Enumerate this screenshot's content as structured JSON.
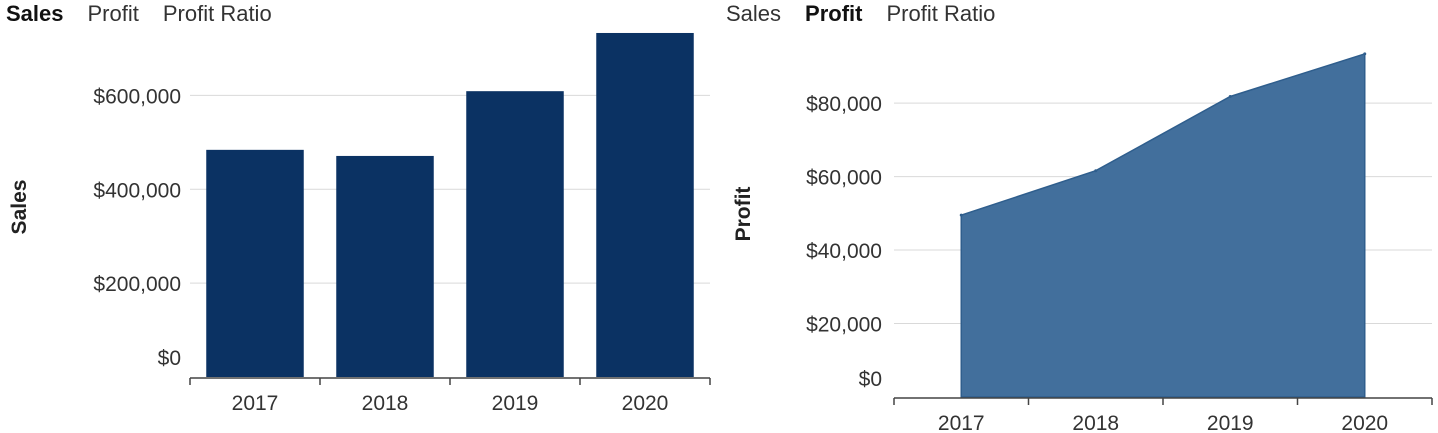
{
  "colors": {
    "bar_fill": "#0b3263",
    "area_fill": "#426f9c",
    "area_stroke": "#2f5e8d",
    "gridline": "#d9d9d9",
    "axis": "#444444"
  },
  "left_panel": {
    "tabs": [
      {
        "label": "Sales",
        "active": true
      },
      {
        "label": "Profit",
        "active": false
      },
      {
        "label": "Profit Ratio",
        "active": false
      }
    ]
  },
  "right_panel": {
    "tabs": [
      {
        "label": "Sales",
        "active": false
      },
      {
        "label": "Profit",
        "active": true
      },
      {
        "label": "Profit Ratio",
        "active": false
      }
    ]
  },
  "chart_data": [
    {
      "type": "bar",
      "categories": [
        "2017",
        "2018",
        "2019",
        "2020"
      ],
      "series": [
        {
          "values": [
            484000,
            471000,
            609000,
            733000
          ]
        }
      ],
      "title": "",
      "xlabel": "",
      "ylabel": "Sales",
      "ylim": [
        0,
        750000
      ],
      "yticks": [
        0,
        200000,
        400000,
        600000
      ],
      "ytick_labels": [
        "$0",
        "$200,000",
        "$400,000",
        "$600,000"
      ],
      "grid": true
    },
    {
      "type": "area",
      "categories": [
        "2017",
        "2018",
        "2019",
        "2020"
      ],
      "series": [
        {
          "values": [
            49500,
            61600,
            81800,
            93400
          ]
        }
      ],
      "title": "",
      "xlabel": "",
      "ylabel": "Profit",
      "ylim": [
        0,
        95000
      ],
      "yticks": [
        0,
        20000,
        40000,
        60000,
        80000
      ],
      "ytick_labels": [
        "$0",
        "$20,000",
        "$40,000",
        "$60,000",
        "$80,000"
      ],
      "grid": true
    }
  ]
}
